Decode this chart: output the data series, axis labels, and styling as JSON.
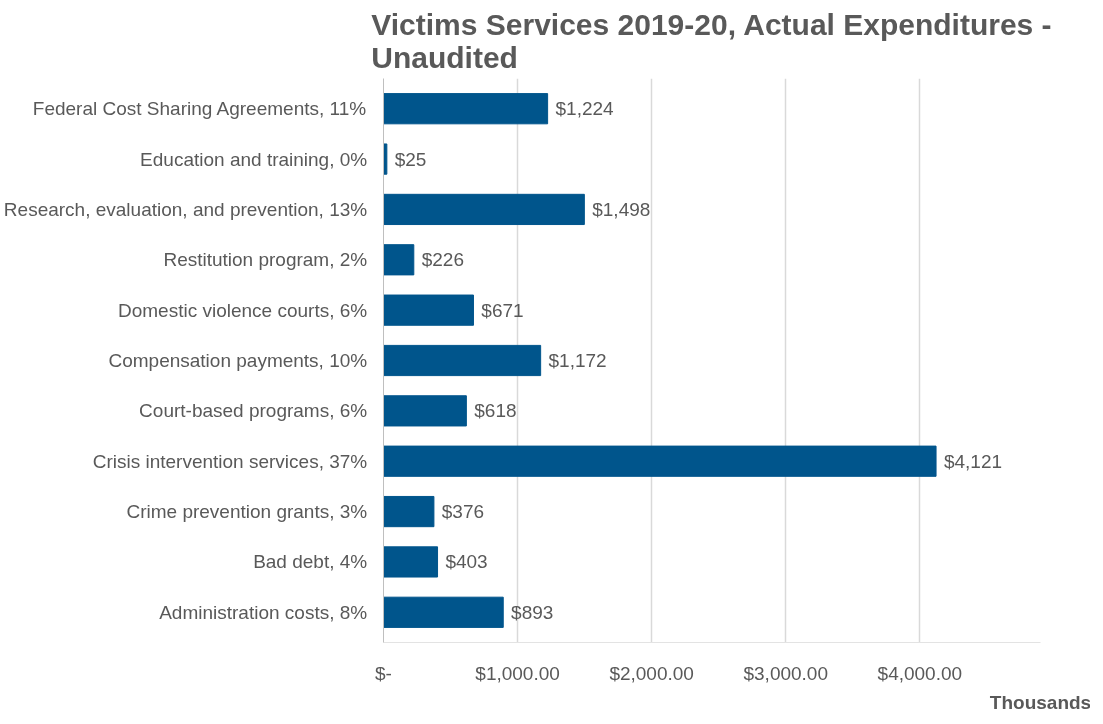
{
  "chart_data": {
    "type": "bar",
    "orientation": "horizontal",
    "title": "Victims Services 2019-20, Actual Expenditures - Unaudited",
    "xlabel": "Thousands",
    "categories": [
      "Federal Cost Sharing Agreements,  11%",
      "Education and training,  0%",
      "Research, evaluation, and prevention,  13%",
      "Restitution program,  2%",
      "Domestic violence courts,  6%",
      "Compensation payments,  10%",
      "Court-based programs,  6%",
      "Crisis intervention services,  37%",
      "Crime prevention grants,  3%",
      "Bad debt,  4%",
      "Administration costs,  8%"
    ],
    "values": [
      1224,
      25,
      1498,
      226,
      671,
      1172,
      618,
      4121,
      376,
      403,
      893
    ],
    "value_labels": [
      "$1,224",
      "$25",
      "$1,498",
      "$226",
      "$671",
      "$1,172",
      "$618",
      "$4,121",
      "$376",
      "$403",
      "$893"
    ],
    "color": "#00558c",
    "xlim": [
      0,
      4900
    ],
    "xticks": [
      {
        "value": 0,
        "label": "$-"
      },
      {
        "value": 1000,
        "label": "$1,000.00"
      },
      {
        "value": 2000,
        "label": "$2,000.00"
      },
      {
        "value": 3000,
        "label": "$3,000.00"
      },
      {
        "value": 4000,
        "label": "$4,000.00"
      }
    ],
    "grid": "x"
  }
}
